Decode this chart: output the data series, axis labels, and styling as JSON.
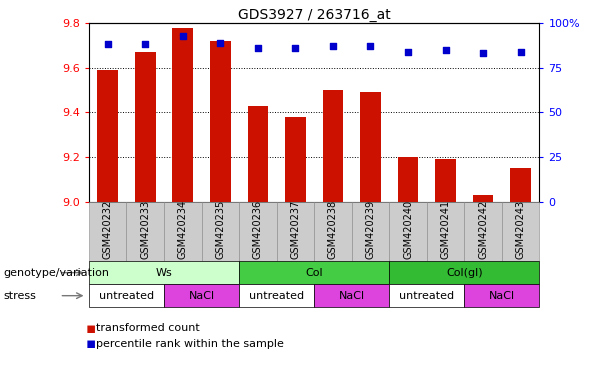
{
  "title": "GDS3927 / 263716_at",
  "samples": [
    "GSM420232",
    "GSM420233",
    "GSM420234",
    "GSM420235",
    "GSM420236",
    "GSM420237",
    "GSM420238",
    "GSM420239",
    "GSM420240",
    "GSM420241",
    "GSM420242",
    "GSM420243"
  ],
  "transformed_count": [
    9.59,
    9.67,
    9.78,
    9.72,
    9.43,
    9.38,
    9.5,
    9.49,
    9.2,
    9.19,
    9.03,
    9.15
  ],
  "percentile_rank": [
    88,
    88,
    93,
    89,
    86,
    86,
    87,
    87,
    84,
    85,
    83,
    84
  ],
  "ylim_left": [
    9.0,
    9.8
  ],
  "ylim_right": [
    0,
    100
  ],
  "yticks_left": [
    9.0,
    9.2,
    9.4,
    9.6,
    9.8
  ],
  "yticks_right": [
    0,
    25,
    50,
    75,
    100
  ],
  "ytick_labels_right": [
    "0",
    "25",
    "50",
    "75",
    "100%"
  ],
  "bar_color": "#cc1100",
  "dot_color": "#0000cc",
  "groups": [
    {
      "label": "Ws",
      "start": 0,
      "end": 3,
      "color": "#ccffcc"
    },
    {
      "label": "Col",
      "start": 4,
      "end": 7,
      "color": "#44cc44"
    },
    {
      "label": "Col(gl)",
      "start": 8,
      "end": 11,
      "color": "#33bb33"
    }
  ],
  "stress": [
    {
      "label": "untreated",
      "start": 0,
      "end": 1,
      "color": "#ffffff"
    },
    {
      "label": "NaCl",
      "start": 2,
      "end": 3,
      "color": "#dd44dd"
    },
    {
      "label": "untreated",
      "start": 4,
      "end": 5,
      "color": "#ffffff"
    },
    {
      "label": "NaCl",
      "start": 6,
      "end": 7,
      "color": "#dd44dd"
    },
    {
      "label": "untreated",
      "start": 8,
      "end": 9,
      "color": "#ffffff"
    },
    {
      "label": "NaCl",
      "start": 10,
      "end": 11,
      "color": "#dd44dd"
    }
  ],
  "legend_items": [
    {
      "label": "transformed count",
      "color": "#cc1100"
    },
    {
      "label": "percentile rank within the sample",
      "color": "#0000cc"
    }
  ],
  "genotype_label": "genotype/variation",
  "stress_label": "stress",
  "background_color": "#ffffff",
  "title_fontsize": 10,
  "tick_fontsize": 8,
  "sample_fontsize": 7,
  "row_label_fontsize": 8,
  "row_text_fontsize": 8,
  "legend_fontsize": 8
}
